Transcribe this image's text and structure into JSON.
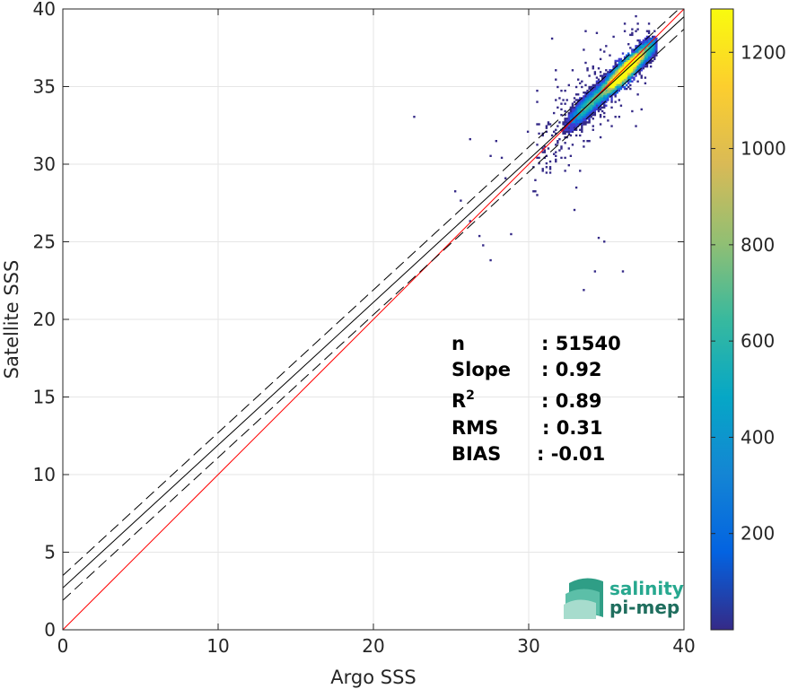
{
  "chart_data": {
    "type": "heatmap",
    "title": "",
    "xlabel": "Argo SSS",
    "ylabel": "Satellite SSS",
    "xlim": [
      0,
      40
    ],
    "ylim": [
      0,
      40
    ],
    "xticks": [
      "0",
      "10",
      "20",
      "30",
      "40"
    ],
    "yticks": [
      "0",
      "5",
      "10",
      "15",
      "20",
      "25",
      "30",
      "35",
      "40"
    ],
    "grid": true,
    "colorbar": {
      "range": [
        0,
        1290
      ],
      "ticks": [
        "200",
        "400",
        "600",
        "800",
        "1000",
        "1200"
      ],
      "colormap": "parula"
    },
    "lines": [
      {
        "name": "one-to-one",
        "color": "#ff0000",
        "style": "solid",
        "x": [
          0,
          40
        ],
        "y": [
          0,
          40
        ]
      },
      {
        "name": "regression",
        "color": "#000000",
        "style": "solid",
        "x": [
          0,
          40
        ],
        "y": [
          2.7,
          39.5
        ]
      },
      {
        "name": "regression-upper",
        "color": "#000000",
        "style": "dashed",
        "x": [
          0,
          40
        ],
        "y": [
          3.5,
          40.3
        ]
      },
      {
        "name": "regression-lower",
        "color": "#000000",
        "style": "dashed",
        "x": [
          0,
          40
        ],
        "y": [
          1.9,
          38.7
        ]
      }
    ],
    "density_core": {
      "x_range": [
        32.5,
        38
      ],
      "y_range": [
        32.5,
        38
      ]
    },
    "stats": [
      {
        "label": "n",
        "value": ": 51540"
      },
      {
        "label": "Slope",
        "value": ": 0.92"
      },
      {
        "label": "R",
        "sup": "2",
        "value": ": 0.89"
      },
      {
        "label": "RMS",
        "value": ": 0.31"
      },
      {
        "label": "BIAS",
        "value": ": -0.01"
      }
    ]
  },
  "logo": {
    "line1": "salinity",
    "line2": "pi-mep"
  },
  "colors": {
    "one_to_one": "#ff0000",
    "regression": "#000000",
    "grid": "#e6e6e6",
    "logo1": "#27a88f",
    "logo2": "#1f6e5e"
  }
}
